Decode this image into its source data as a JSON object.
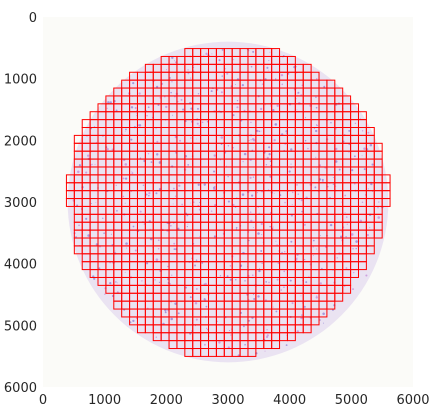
{
  "chart_data": {
    "type": "image_with_grid_overlay",
    "xlim": [
      0,
      6000
    ],
    "ylim": [
      6000,
      0
    ],
    "x_ticks": [
      {
        "value": 0,
        "label": "0"
      },
      {
        "value": 1000,
        "label": "1000"
      },
      {
        "value": 2000,
        "label": "2000"
      },
      {
        "value": 3000,
        "label": "3000"
      },
      {
        "value": 4000,
        "label": "4000"
      },
      {
        "value": 5000,
        "label": "5000"
      },
      {
        "value": 6000,
        "label": "6000"
      }
    ],
    "y_ticks": [
      {
        "value": 0,
        "label": "0"
      },
      {
        "value": 1000,
        "label": "1000"
      },
      {
        "value": 2000,
        "label": "2000"
      },
      {
        "value": 3000,
        "label": "3000"
      },
      {
        "value": 4000,
        "label": "4000"
      },
      {
        "value": 5000,
        "label": "5000"
      },
      {
        "value": 6000,
        "label": "6000"
      }
    ],
    "tissue_disk": {
      "center": [
        3000,
        3000
      ],
      "radius": 2600,
      "color": "#dcd0ec"
    },
    "background_color": "#fbfbf8",
    "tile_grid": {
      "tile_size": 128,
      "tile_color": "#ff0000",
      "row_spans": [
        {
          "row_top": 512,
          "x_start": 2300,
          "x_end": 3836
        },
        {
          "row_top": 640,
          "x_start": 1916,
          "x_end": 4092
        },
        {
          "row_top": 768,
          "x_start": 1660,
          "x_end": 4348
        },
        {
          "row_top": 896,
          "x_start": 1404,
          "x_end": 4476
        },
        {
          "row_top": 1024,
          "x_start": 1276,
          "x_end": 4732
        },
        {
          "row_top": 1152,
          "x_start": 1148,
          "x_end": 4860
        },
        {
          "row_top": 1280,
          "x_start": 1020,
          "x_end": 4988
        },
        {
          "row_top": 1408,
          "x_start": 892,
          "x_end": 5116
        },
        {
          "row_top": 1536,
          "x_start": 764,
          "x_end": 5244
        },
        {
          "row_top": 1664,
          "x_start": 636,
          "x_end": 5244
        },
        {
          "row_top": 1792,
          "x_start": 636,
          "x_end": 5372
        },
        {
          "row_top": 1920,
          "x_start": 508,
          "x_end": 5372
        },
        {
          "row_top": 2048,
          "x_start": 508,
          "x_end": 5500
        },
        {
          "row_top": 2176,
          "x_start": 508,
          "x_end": 5500
        },
        {
          "row_top": 2304,
          "x_start": 508,
          "x_end": 5500
        },
        {
          "row_top": 2432,
          "x_start": 508,
          "x_end": 5500
        },
        {
          "row_top": 2560,
          "x_start": 380,
          "x_end": 5628
        },
        {
          "row_top": 2688,
          "x_start": 380,
          "x_end": 5628
        },
        {
          "row_top": 2816,
          "x_start": 380,
          "x_end": 5628
        },
        {
          "row_top": 2944,
          "x_start": 380,
          "x_end": 5628
        },
        {
          "row_top": 3072,
          "x_start": 508,
          "x_end": 5500
        },
        {
          "row_top": 3200,
          "x_start": 508,
          "x_end": 5500
        },
        {
          "row_top": 3328,
          "x_start": 508,
          "x_end": 5500
        },
        {
          "row_top": 3456,
          "x_start": 508,
          "x_end": 5500
        },
        {
          "row_top": 3584,
          "x_start": 508,
          "x_end": 5372
        },
        {
          "row_top": 3712,
          "x_start": 508,
          "x_end": 5372
        },
        {
          "row_top": 3840,
          "x_start": 636,
          "x_end": 5244
        },
        {
          "row_top": 3968,
          "x_start": 636,
          "x_end": 5244
        },
        {
          "row_top": 4096,
          "x_start": 764,
          "x_end": 5116
        },
        {
          "row_top": 4224,
          "x_start": 892,
          "x_end": 4988
        },
        {
          "row_top": 4352,
          "x_start": 1020,
          "x_end": 4988
        },
        {
          "row_top": 4480,
          "x_start": 1148,
          "x_end": 4860
        },
        {
          "row_top": 4608,
          "x_start": 1148,
          "x_end": 4732
        },
        {
          "row_top": 4736,
          "x_start": 1276,
          "x_end": 4604
        },
        {
          "row_top": 4864,
          "x_start": 1404,
          "x_end": 4476
        },
        {
          "row_top": 4992,
          "x_start": 1532,
          "x_end": 4348
        },
        {
          "row_top": 5120,
          "x_start": 1788,
          "x_end": 4092
        },
        {
          "row_top": 5248,
          "x_start": 2044,
          "x_end": 3836
        },
        {
          "row_top": 5376,
          "x_start": 2300,
          "x_end": 3452
        }
      ]
    }
  }
}
